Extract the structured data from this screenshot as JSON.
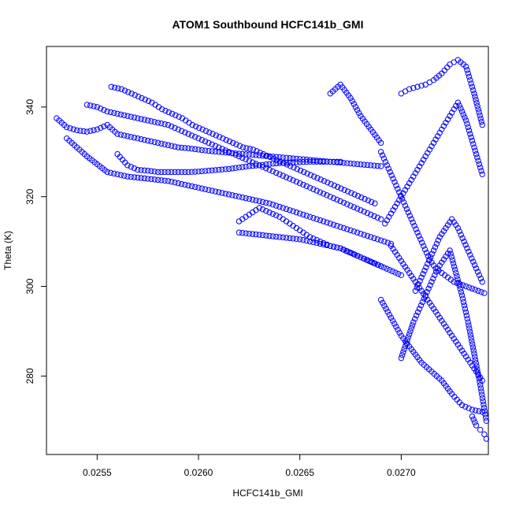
{
  "chart_data": {
    "type": "scatter",
    "title": "ATOM1 Southbound HCFC141b_GMI",
    "xlabel": "HCFC141b_GMI",
    "ylabel": "Theta (K)",
    "xlim": [
      0.02525,
      0.02743
    ],
    "ylim": [
      262.5,
      353.5
    ],
    "x_ticks": [
      0.0255,
      0.026,
      0.0265,
      0.027
    ],
    "x_tick_labels": [
      "0.0255",
      "0.0260",
      "0.0265",
      "0.0270"
    ],
    "y_ticks": [
      280,
      300,
      320,
      340
    ],
    "y_tick_labels": [
      "280",
      "300",
      "320",
      "340"
    ],
    "grid": false,
    "legend": "none",
    "marker": "open-circle",
    "color": "#0000ff",
    "series": [
      {
        "x": [
          0.0253,
          0.02535,
          0.0254,
          0.02545,
          0.0255,
          0.02555,
          0.0256,
          0.02565,
          0.0257,
          0.02575,
          0.0258,
          0.02585,
          0.0259,
          0.02595,
          0.026,
          0.02605,
          0.0261,
          0.02615,
          0.0262,
          0.02625,
          0.0263,
          0.02635,
          0.0264,
          0.02645,
          0.0265,
          0.02655,
          0.0266,
          0.02665,
          0.0267,
          0.02675,
          0.0268,
          0.02685,
          0.0269
        ],
        "y": [
          337.5,
          335.5,
          334.8,
          334.5,
          335.0,
          336.0,
          334.0,
          333.5,
          333.0,
          332.5,
          332.0,
          331.5,
          331.0,
          330.8,
          330.5,
          330.2,
          330.0,
          329.8,
          329.6,
          329.4,
          329.2,
          329.0,
          328.8,
          328.6,
          328.4,
          328.2,
          328.0,
          327.8,
          327.6,
          327.4,
          327.2,
          327.0,
          326.8
        ]
      },
      {
        "x": [
          0.02535,
          0.02545,
          0.02555,
          0.02565,
          0.02575,
          0.02585,
          0.02595,
          0.02605,
          0.02615,
          0.02625,
          0.02635,
          0.02645,
          0.02655,
          0.02665,
          0.02675,
          0.02685,
          0.02695
        ],
        "y": [
          333.0,
          329.0,
          325.5,
          324.5,
          324.0,
          323.5,
          322.5,
          321.5,
          320.5,
          319.5,
          318.5,
          317.0,
          315.5,
          314.0,
          312.5,
          311.0,
          309.5
        ]
      },
      {
        "x": [
          0.02545,
          0.0255,
          0.02555,
          0.0256,
          0.02565,
          0.0257,
          0.02575,
          0.0258,
          0.02585,
          0.0259,
          0.02595,
          0.026,
          0.02605,
          0.0261,
          0.02615,
          0.0262,
          0.02625,
          0.0263,
          0.02635,
          0.0264,
          0.02645,
          0.0265,
          0.02655,
          0.0266,
          0.02665,
          0.0267,
          0.02675,
          0.0268,
          0.02685,
          0.0269
        ],
        "y": [
          340.5,
          340.0,
          339.0,
          338.5,
          338.0,
          337.5,
          337.0,
          336.5,
          336.0,
          335.0,
          334.0,
          333.0,
          332.0,
          331.0,
          330.0,
          329.0,
          328.0,
          327.0,
          326.0,
          325.0,
          324.0,
          323.0,
          322.0,
          321.0,
          320.0,
          319.0,
          318.0,
          317.0,
          316.0,
          315.0
        ]
      },
      {
        "x": [
          0.02557,
          0.02562,
          0.02567,
          0.02572,
          0.02577,
          0.02582,
          0.02587,
          0.02592,
          0.02597,
          0.02602,
          0.02607,
          0.02612,
          0.02617,
          0.02622,
          0.02627,
          0.02632,
          0.02637,
          0.02642,
          0.02647,
          0.02652,
          0.02657,
          0.02662,
          0.02667,
          0.02672,
          0.02677,
          0.02682,
          0.02687
        ],
        "y": [
          344.5,
          344.0,
          343.0,
          342.0,
          341.0,
          339.5,
          338.5,
          337.5,
          336.0,
          335.0,
          334.0,
          333.0,
          332.0,
          331.0,
          330.5,
          329.5,
          328.5,
          327.5,
          326.5,
          325.5,
          324.5,
          323.5,
          322.5,
          321.5,
          320.5,
          319.5,
          318.5
        ]
      },
      {
        "x": [
          0.0256,
          0.02565,
          0.0257,
          0.02575,
          0.0258,
          0.02585,
          0.0259,
          0.02595,
          0.026,
          0.02605,
          0.0261,
          0.02615,
          0.0262,
          0.02625,
          0.0263,
          0.02635,
          0.0264,
          0.02645,
          0.0265,
          0.02655,
          0.0266,
          0.02665,
          0.0267
        ],
        "y": [
          329.5,
          327.0,
          326.0,
          325.8,
          325.5,
          325.5,
          325.5,
          325.5,
          325.6,
          325.8,
          326.0,
          326.2,
          326.5,
          326.8,
          327.0,
          327.3,
          327.5,
          327.6,
          327.7,
          327.8,
          327.8,
          327.8,
          327.8
        ]
      },
      {
        "x": [
          0.0262,
          0.02625,
          0.0263,
          0.02635,
          0.0264,
          0.02645,
          0.0265,
          0.02655,
          0.0266,
          0.02665,
          0.0267,
          0.02675,
          0.0268,
          0.02685,
          0.0269
        ],
        "y": [
          314.5,
          316.0,
          317.5,
          316.5,
          315.5,
          314.0,
          312.5,
          311.0,
          310.0,
          309.0,
          308.5,
          307.5,
          306.5,
          305.5,
          304.5
        ]
      },
      {
        "x": [
          0.0262,
          0.0263,
          0.0264,
          0.0265,
          0.0266,
          0.0267,
          0.0268,
          0.0269,
          0.027
        ],
        "y": [
          312.0,
          311.5,
          311.0,
          310.5,
          309.5,
          308.5,
          306.5,
          304.5,
          302.5
        ]
      },
      {
        "x": [
          0.0269,
          0.02695,
          0.027,
          0.02705,
          0.0271,
          0.02715,
          0.0272,
          0.02725,
          0.0273,
          0.02735,
          0.0274
        ],
        "y": [
          297.0,
          293.0,
          289.0,
          286.0,
          283.0,
          281.0,
          279.0,
          276.0,
          273.5,
          272.5,
          272.0
        ]
      },
      {
        "x": [
          0.027,
          0.02703,
          0.02706,
          0.02709,
          0.02712,
          0.02715,
          0.02718,
          0.02721,
          0.02724,
          0.02727,
          0.0273,
          0.02733,
          0.02736,
          0.02739,
          0.02742
        ],
        "y": [
          284.0,
          288.0,
          292.0,
          295.0,
          298.0,
          301.0,
          304.0,
          306.0,
          308.0,
          303.0,
          298.0,
          292.0,
          285.0,
          278.0,
          270.0
        ]
      },
      {
        "x": [
          0.02692,
          0.02696,
          0.027,
          0.02704,
          0.02708,
          0.02712,
          0.02716,
          0.0272,
          0.02724,
          0.02728,
          0.02732,
          0.02736,
          0.0274
        ],
        "y": [
          314.0,
          317.0,
          320.0,
          323.0,
          326.0,
          329.0,
          332.0,
          335.0,
          338.0,
          341.0,
          337.0,
          331.0,
          325.0
        ]
      },
      {
        "x": [
          0.0269,
          0.02693,
          0.02696,
          0.02699,
          0.02702,
          0.02705,
          0.02708,
          0.02711,
          0.02714,
          0.02717,
          0.0272,
          0.02723,
          0.02726,
          0.02729,
          0.02732,
          0.02735,
          0.02738,
          0.02741
        ],
        "y": [
          330.0,
          327.0,
          324.0,
          321.0,
          318.0,
          315.0,
          312.0,
          309.0,
          306.0,
          304.0,
          303.0,
          302.0,
          301.0,
          300.5,
          300.0,
          299.5,
          299.0,
          298.5
        ]
      },
      {
        "x": [
          0.027,
          0.02704,
          0.02708,
          0.02712,
          0.02716,
          0.0272,
          0.02724,
          0.02728,
          0.02732,
          0.02736,
          0.0274
        ],
        "y": [
          343.0,
          344.0,
          344.5,
          345.0,
          346.0,
          347.5,
          349.5,
          350.5,
          349.0,
          343.0,
          336.0
        ]
      },
      {
        "x": [
          0.02695,
          0.02698,
          0.02701,
          0.02704,
          0.02707,
          0.0271,
          0.02713,
          0.02716,
          0.02719,
          0.02722,
          0.02725,
          0.02728,
          0.02731,
          0.02734,
          0.02737,
          0.0274
        ],
        "y": [
          309.0,
          307.0,
          305.0,
          303.0,
          301.0,
          299.0,
          297.0,
          295.0,
          293.0,
          291.0,
          289.0,
          287.0,
          285.0,
          283.0,
          281.0,
          279.0
        ]
      },
      {
        "x": [
          0.02707,
          0.0271,
          0.02713,
          0.02716,
          0.02719,
          0.02722,
          0.02725,
          0.02728,
          0.02731,
          0.02734,
          0.02737,
          0.0274
        ],
        "y": [
          299.0,
          302.0,
          305.0,
          308.0,
          311.0,
          313.0,
          315.0,
          313.0,
          310.0,
          307.0,
          304.0,
          301.0
        ]
      },
      {
        "x": [
          0.02665,
          0.0267,
          0.02675,
          0.0268,
          0.02685,
          0.0269
        ],
        "y": [
          343.0,
          345.0,
          342.0,
          338.0,
          335.0,
          332.0
        ]
      },
      {
        "x": [
          0.02735,
          0.02737,
          0.02739,
          0.02741,
          0.02742
        ],
        "y": [
          271.0,
          269.0,
          268.0,
          267.0,
          266.0
        ]
      }
    ]
  }
}
